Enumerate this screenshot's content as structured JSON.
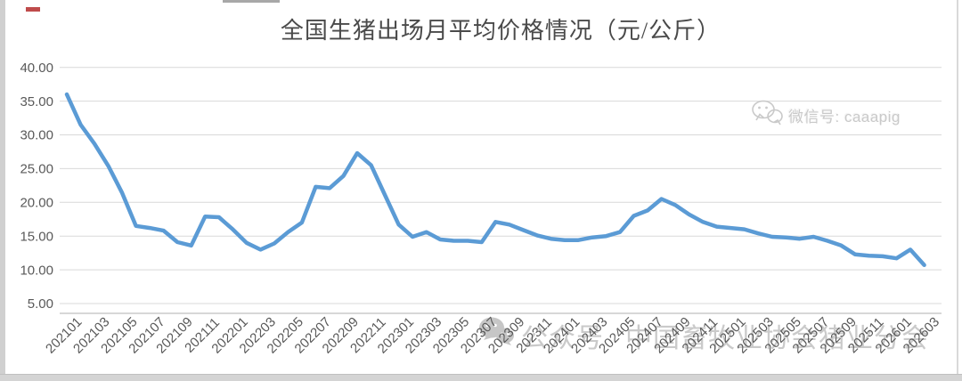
{
  "title": "全国生猪出场月平均价格情况（元/公斤）",
  "watermark_top": {
    "icon": "wechat-icon",
    "text": "微信号: caaapig",
    "color": "#c9c9c9"
  },
  "watermark_bottom": {
    "icon": "wechat-icon",
    "account_type": "公众号",
    "org_name": "中国畜牧业协会猪业分会",
    "color": "#bdbdbd"
  },
  "chart_data": {
    "type": "line",
    "title": "全国生猪出场月平均价格情况（元/公斤）",
    "unit": "元/公斤",
    "legend": "none",
    "grid": "horizontal",
    "ylim": [
      3.5,
      41.5
    ],
    "y_ticks": [
      5,
      10,
      15,
      20,
      25,
      30,
      35,
      40
    ],
    "y_tick_labels": [
      "5.00",
      "10.00",
      "15.00",
      "20.00",
      "25.00",
      "30.00",
      "35.00",
      "40.00"
    ],
    "x_tick_labels": [
      "202101",
      "202103",
      "202105",
      "202107",
      "202109",
      "202111",
      "202201",
      "202203",
      "202205",
      "202207",
      "202209",
      "202211",
      "202301",
      "202303",
      "202305",
      "202307",
      "202309",
      "202311",
      "202401",
      "202403",
      "202405",
      "202407",
      "202409",
      "202411",
      "202501",
      "202503",
      "202505",
      "202507",
      "202509",
      "202511",
      "202601",
      "202603"
    ],
    "x": [
      "202101",
      "202102",
      "202103",
      "202104",
      "202105",
      "202106",
      "202107",
      "202108",
      "202109",
      "202110",
      "202111",
      "202112",
      "202201",
      "202202",
      "202203",
      "202204",
      "202205",
      "202206",
      "202207",
      "202208",
      "202209",
      "202210",
      "202211",
      "202212",
      "202301",
      "202302",
      "202303",
      "202304",
      "202305",
      "202306",
      "202307",
      "202308",
      "202309",
      "202310",
      "202311",
      "202312",
      "202401",
      "202402",
      "202403",
      "202404",
      "202405",
      "202406",
      "202407",
      "202408",
      "202409",
      "202410",
      "202411",
      "202412",
      "202501",
      "202502",
      "202503",
      "202504",
      "202505",
      "202506",
      "202507",
      "202508",
      "202509",
      "202510",
      "202511",
      "202512",
      "202601",
      "202602",
      "202603"
    ],
    "series": [
      {
        "name": "全国生猪出场月平均价格",
        "color": "#5B9BD5",
        "values": [
          36.0,
          31.5,
          28.7,
          25.4,
          21.4,
          16.5,
          16.2,
          15.8,
          14.1,
          13.6,
          17.9,
          17.8,
          16.0,
          14.0,
          13.0,
          13.9,
          15.6,
          17.0,
          22.3,
          22.1,
          23.9,
          27.3,
          25.5,
          21.1,
          16.7,
          14.9,
          15.6,
          14.5,
          14.3,
          14.3,
          14.1,
          17.1,
          16.7,
          15.9,
          15.1,
          14.6,
          14.4,
          14.4,
          14.8,
          15.0,
          15.6,
          18.0,
          18.8,
          20.5,
          19.6,
          18.2,
          17.1,
          16.4,
          16.2,
          16.0,
          15.4,
          14.9,
          14.8,
          14.6,
          14.9,
          14.3,
          13.6,
          12.3,
          12.1,
          12.0,
          11.7,
          13.0,
          10.7
        ]
      }
    ],
    "colors": {
      "line": "#5B9BD5",
      "gridline": "#d9d9d9",
      "axis_line": "#bfbfbf",
      "axis_label": "#595959",
      "title": "#4a4a4a"
    }
  }
}
